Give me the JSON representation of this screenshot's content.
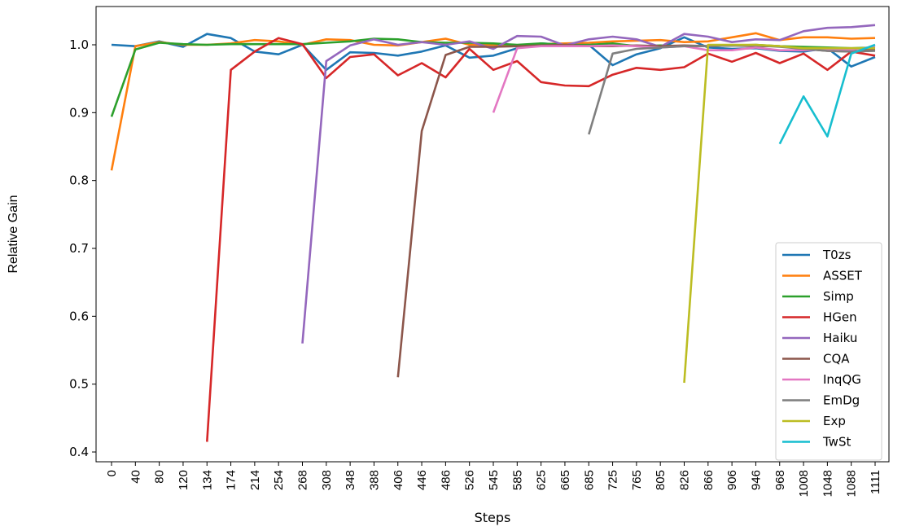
{
  "chart_data": {
    "type": "line",
    "title": "",
    "xlabel": "Steps",
    "ylabel": "Relative Gain",
    "categories": [
      "0",
      "40",
      "80",
      "120",
      "134",
      "174",
      "214",
      "254",
      "268",
      "308",
      "348",
      "388",
      "406",
      "446",
      "486",
      "526",
      "545",
      "585",
      "625",
      "665",
      "685",
      "725",
      "765",
      "805",
      "826",
      "866",
      "906",
      "946",
      "968",
      "1008",
      "1048",
      "1088",
      "1111"
    ],
    "ylim": [
      0.385,
      1.06
    ],
    "yticks": [
      0.4,
      0.5,
      0.6,
      0.7,
      0.8,
      0.9,
      1.0
    ],
    "ytick_labels": [
      "0.4",
      "0.5",
      "0.6",
      "0.7",
      "0.8",
      "0.9",
      "1.0"
    ],
    "grid": false,
    "legend_position": "lower-right",
    "series": [
      {
        "name": "T0zs",
        "color": "#1f77b4",
        "values": [
          1.0,
          0.998,
          1.005,
          0.997,
          1.016,
          1.01,
          0.99,
          0.986,
          1.0,
          0.963,
          0.989,
          0.988,
          0.984,
          0.99,
          0.999,
          0.981,
          0.984,
          0.995,
          1.002,
          1.0,
          1.0,
          0.97,
          0.986,
          0.995,
          1.011,
          0.996,
          0.994,
          0.995,
          0.991,
          0.99,
          0.995,
          0.968,
          0.982
        ]
      },
      {
        "name": "ASSET",
        "color": "#ff7f0e",
        "values": [
          0.815,
          0.998,
          1.004,
          1.0,
          1.0,
          1.002,
          1.007,
          1.005,
          1.0,
          1.008,
          1.007,
          1.0,
          0.999,
          1.004,
          1.009,
          1.0,
          1.0,
          0.998,
          1.001,
          1.002,
          1.003,
          1.005,
          1.006,
          1.007,
          1.004,
          1.005,
          1.011,
          1.017,
          1.007,
          1.011,
          1.011,
          1.009,
          1.01
        ]
      },
      {
        "name": "Simp",
        "color": "#2ca02c",
        "values": [
          0.894,
          0.993,
          1.003,
          1.001,
          1.0,
          1.001,
          1.001,
          1.001,
          1.001,
          1.003,
          1.005,
          1.009,
          1.008,
          1.004,
          1.003,
          1.003,
          1.002,
          1.0,
          1.002,
          1.0,
          1.0,
          1.002,
          0.998,
          0.999,
          0.998,
          0.998,
          0.999,
          1.0,
          0.998,
          0.997,
          0.996,
          0.995,
          0.996
        ]
      },
      {
        "name": "HGen",
        "color": "#d62728",
        "values": [
          null,
          null,
          null,
          null,
          0.415,
          0.963,
          0.99,
          1.01,
          1.001,
          0.951,
          0.982,
          0.986,
          0.955,
          0.973,
          0.952,
          0.994,
          0.963,
          0.976,
          0.945,
          0.94,
          0.939,
          0.956,
          0.966,
          0.963,
          0.967,
          0.987,
          0.975,
          0.988,
          0.973,
          0.987,
          0.963,
          0.99,
          0.984
        ]
      },
      {
        "name": "Haiku",
        "color": "#9467bd",
        "values": [
          null,
          null,
          null,
          null,
          null,
          null,
          null,
          null,
          0.56,
          0.976,
          0.999,
          1.008,
          1.0,
          1.004,
          1.0,
          1.005,
          0.994,
          1.013,
          1.012,
          0.999,
          1.008,
          1.012,
          1.008,
          0.997,
          1.016,
          1.012,
          1.004,
          1.008,
          1.007,
          1.02,
          1.025,
          1.026,
          1.029
        ]
      },
      {
        "name": "CQA",
        "color": "#8c564b",
        "values": [
          null,
          null,
          null,
          null,
          null,
          null,
          null,
          null,
          null,
          null,
          null,
          null,
          0.51,
          0.873,
          0.985,
          0.997,
          0.997,
          0.998,
          0.999,
          1.0,
          0.998,
          0.998,
          0.999,
          0.998,
          0.999,
          0.998,
          0.999,
          0.998,
          0.998,
          0.994,
          0.991,
          0.99,
          0.993
        ]
      },
      {
        "name": "InqQG",
        "color": "#e377c2",
        "values": [
          null,
          null,
          null,
          null,
          null,
          null,
          null,
          null,
          null,
          null,
          null,
          null,
          null,
          null,
          null,
          null,
          0.9,
          0.995,
          0.998,
          0.998,
          0.998,
          0.999,
          0.998,
          0.996,
          0.998,
          0.992,
          0.992,
          0.996,
          0.992,
          0.992,
          0.993,
          0.993,
          0.997
        ]
      },
      {
        "name": "EmDg",
        "color": "#7f7f7f",
        "values": [
          null,
          null,
          null,
          null,
          null,
          null,
          null,
          null,
          null,
          null,
          null,
          null,
          null,
          null,
          null,
          null,
          null,
          null,
          null,
          null,
          0.868,
          0.987,
          0.994,
          0.996,
          0.998,
          0.998,
          0.999,
          0.999,
          0.997,
          0.994,
          0.991,
          0.99,
          0.991
        ]
      },
      {
        "name": "Exp",
        "color": "#bcbd22",
        "values": [
          null,
          null,
          null,
          null,
          null,
          null,
          null,
          null,
          null,
          null,
          null,
          null,
          null,
          null,
          null,
          null,
          null,
          null,
          null,
          null,
          null,
          null,
          null,
          null,
          0.502,
          1.0,
          1.0,
          1.0,
          0.998,
          0.995,
          0.995,
          0.995,
          0.995
        ]
      },
      {
        "name": "TwSt",
        "color": "#17becf",
        "values": [
          null,
          null,
          null,
          null,
          null,
          null,
          null,
          null,
          null,
          null,
          null,
          null,
          null,
          null,
          null,
          null,
          null,
          null,
          null,
          null,
          null,
          null,
          null,
          null,
          null,
          null,
          null,
          null,
          0.854,
          0.924,
          0.865,
          0.987,
          1.0
        ]
      }
    ]
  }
}
